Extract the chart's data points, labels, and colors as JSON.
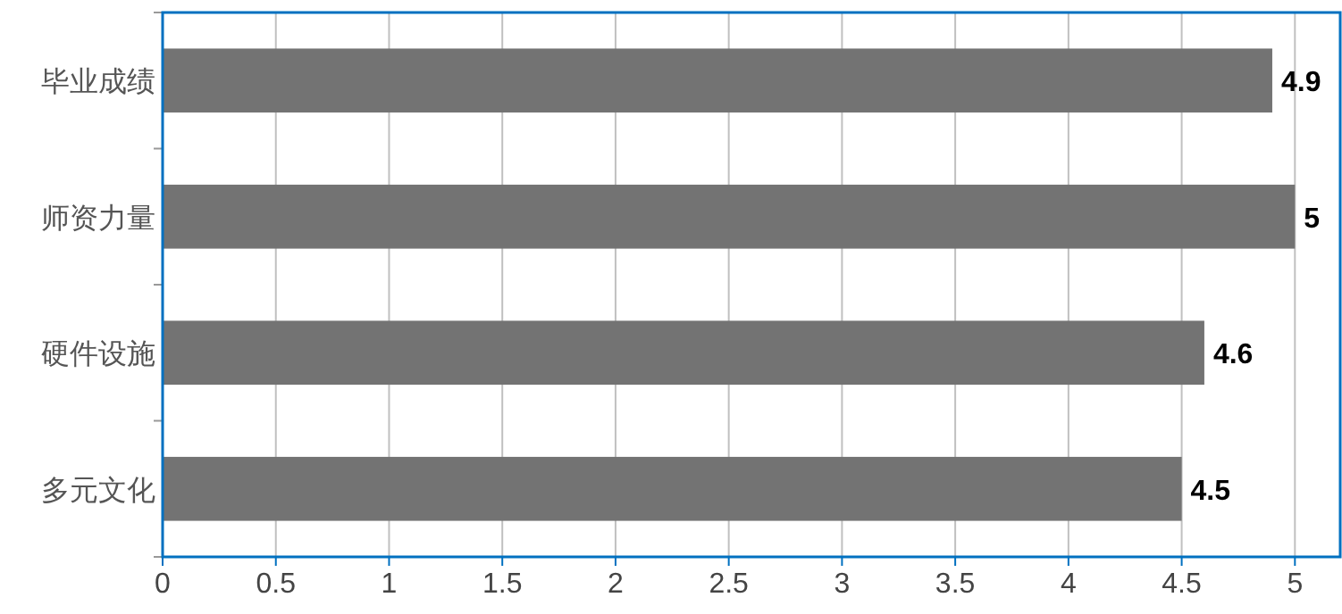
{
  "chart_data": {
    "type": "bar",
    "orientation": "horizontal",
    "categories": [
      "毕业成绩",
      "师资力量",
      "硬件设施",
      "多元文化"
    ],
    "values": [
      4.9,
      5,
      4.6,
      4.5
    ],
    "color": "#737373",
    "xlim": [
      0,
      5.2
    ],
    "xticks": [
      0,
      0.5,
      1,
      1.5,
      2,
      2.5,
      3,
      3.5,
      4,
      4.5,
      5
    ],
    "grid": "x",
    "data_labels": true
  }
}
